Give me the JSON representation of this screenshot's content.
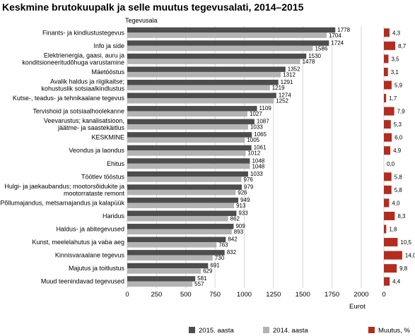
{
  "chart_data": {
    "type": "bar",
    "orientation": "horizontal",
    "title": "Keskmine brutokuupalk ja selle muutus tegevusalati, 2014–2015",
    "category_axis_title": "Tegevusala",
    "xlabel": "Eurot",
    "xlim": [
      0,
      2000
    ],
    "x_ticks": [
      "0",
      "250",
      "500",
      "750",
      "1000",
      "1250",
      "1500",
      "1750",
      "2000"
    ],
    "change_axis_tick": "0",
    "grid": true,
    "legend_position": "bottom",
    "colors": {
      "s2015": "#4d4d4d",
      "s2014": "#b3b3b3",
      "change": "#b52b1e"
    },
    "categories": [
      [
        "Finants- ja kindlustustegevus"
      ],
      [
        "Info ja side"
      ],
      [
        "Elektrienergia, gaasi, auru ja",
        "konditsioneeritudõhuga varustamine"
      ],
      [
        "Mäetööstus"
      ],
      [
        "Avalik haldus ja riigikaitse;",
        "kohustuslik sotsiaalkindlustus"
      ],
      [
        "Kutse-, teadus- ja tehnikaalane tegevus"
      ],
      [
        "Tervishoid ja sotsiaalhoolekanne"
      ],
      [
        "Veevarustus; kanalisatsioon,",
        "jäätme- ja saastekäitlus"
      ],
      [
        "KESKMINE"
      ],
      [
        "Veondus ja laondus"
      ],
      [
        "Ehitus"
      ],
      [
        "Töötlev tööstus"
      ],
      [
        "Hulgi- ja jaekaubandus; mootorsõidukite ja",
        "mootorrataste remont"
      ],
      [
        "Põllumajandus, metsamajandus ja kalapüük"
      ],
      [
        "Haridus"
      ],
      [
        "Haldus- ja abitegevused"
      ],
      [
        "Kunst, meelelahutus ja vaba aeg"
      ],
      [
        "Kinnisvaraalane tegevus"
      ],
      [
        "Majutus ja toitlustus"
      ],
      [
        "Muud teenindavad tegevused"
      ]
    ],
    "series": [
      {
        "name": "2015. aasta",
        "values": [
          1778,
          1724,
          1530,
          1352,
          1291,
          1274,
          1109,
          1087,
          1065,
          1061,
          1048,
          1033,
          979,
          949,
          933,
          909,
          842,
          832,
          691,
          581
        ]
      },
      {
        "name": "2014. aasta",
        "values": [
          1704,
          1586,
          1478,
          1312,
          1219,
          1252,
          1027,
          1033,
          1005,
          1012,
          1048,
          976,
          926,
          913,
          862,
          893,
          763,
          730,
          629,
          557
        ]
      },
      {
        "name": "Muutus, %",
        "values": [
          4.3,
          8.7,
          3.5,
          3.1,
          5.9,
          1.7,
          7.9,
          5.3,
          6.0,
          4.9,
          0.0,
          5.8,
          5.8,
          4.0,
          8.3,
          1.8,
          10.5,
          14.0,
          9.8,
          4.4
        ],
        "labels": [
          "4,3",
          "8,7",
          "3,5",
          "3,1",
          "5,9",
          "1,7",
          "7,9",
          "5,3",
          "6,0",
          "4,9",
          "0,0",
          "5,8",
          "5,8",
          "4,0",
          "8,3",
          "1,8",
          "10,5",
          "14,0",
          "9,8",
          "4,4"
        ]
      }
    ]
  }
}
